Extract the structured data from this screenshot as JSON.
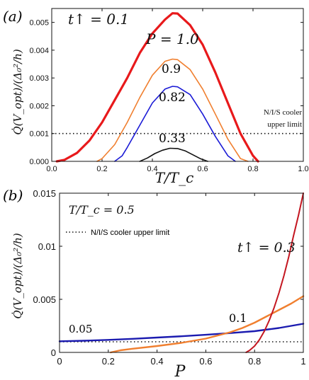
{
  "chart_data": [
    {
      "panel_label": "(a)",
      "type": "line",
      "xlabel": "T/T_c",
      "ylabel": "Q̇(V_opt)/(Δ₀²/h)",
      "xlim": [
        0.0,
        1.0
      ],
      "ylim": [
        0.0,
        0.0055
      ],
      "x_ticks": [
        "0.0",
        "0.2",
        "0.4",
        "0.6",
        "0.8",
        "1.0"
      ],
      "y_ticks": [
        "0.000",
        "0.001",
        "0.002",
        "0.003",
        "0.004",
        "0.005"
      ],
      "annotation_main": "t↑ = 0.1",
      "series": [
        {
          "name": "P = 1.0",
          "color": "#e8191b",
          "x": [
            0.02,
            0.05,
            0.1,
            0.15,
            0.2,
            0.25,
            0.3,
            0.35,
            0.4,
            0.45,
            0.48,
            0.5,
            0.55,
            0.6,
            0.65,
            0.7,
            0.75,
            0.8,
            0.82
          ],
          "values": [
            0.0,
            5e-05,
            0.0003,
            0.00075,
            0.0014,
            0.0022,
            0.003,
            0.0039,
            0.0046,
            0.0051,
            0.00533,
            0.00532,
            0.0049,
            0.0042,
            0.0032,
            0.0021,
            0.001,
            0.0002,
            0.0
          ]
        },
        {
          "name": "0.9",
          "color": "#f07f2f",
          "x": [
            0.18,
            0.2,
            0.25,
            0.3,
            0.35,
            0.4,
            0.45,
            0.48,
            0.5,
            0.55,
            0.6,
            0.65,
            0.7,
            0.75,
            0.78
          ],
          "values": [
            0.0,
            0.0001,
            0.0006,
            0.0014,
            0.0023,
            0.0031,
            0.0036,
            0.00368,
            0.00366,
            0.0033,
            0.0026,
            0.0017,
            0.0008,
            0.0001,
            0.0
          ],
          "label": "0.9"
        },
        {
          "name": "0.82",
          "color": "#1b1bd6",
          "x": [
            0.25,
            0.28,
            0.3,
            0.35,
            0.4,
            0.45,
            0.48,
            0.5,
            0.55,
            0.6,
            0.65,
            0.7,
            0.73
          ],
          "values": [
            0.0,
            0.0002,
            0.0005,
            0.0013,
            0.0021,
            0.0026,
            0.0027,
            0.00268,
            0.0024,
            0.0017,
            0.0009,
            0.0002,
            0.0
          ],
          "label": "0.82"
        },
        {
          "name": "0.33",
          "color": "#111111",
          "x": [
            0.35,
            0.38,
            0.41,
            0.44,
            0.47,
            0.5,
            0.53,
            0.56,
            0.59,
            0.62
          ],
          "values": [
            0.0,
            0.00012,
            0.00028,
            0.0004,
            0.00047,
            0.00046,
            0.00038,
            0.00024,
            0.0001,
            0.0
          ],
          "label": "0.33"
        }
      ],
      "reference_line": {
        "y": 0.001,
        "label_line1": "N/I/S cooler",
        "label_line2": "upper limit"
      }
    },
    {
      "panel_label": "(b)",
      "type": "line",
      "xlabel": "P",
      "ylabel": "Q̇(V_opt)/(Δ₀²/h)",
      "xlim": [
        0.0,
        1.0
      ],
      "ylim": [
        0.0,
        0.015
      ],
      "x_ticks": [
        "0",
        "0.2",
        "0.4",
        "0.6",
        "0.8",
        "1"
      ],
      "y_ticks": [
        "0",
        "0.005",
        "0.01",
        "0.015"
      ],
      "annotation_temp": "T/T_c = 0.5",
      "annotation_series": "t↑ = 0.3",
      "legend_entry": "N/I/S cooler upper limit",
      "reference_line": {
        "y": 0.001
      },
      "series": [
        {
          "name": "0.05",
          "color": "#1b1bb0",
          "x": [
            0.0,
            0.1,
            0.2,
            0.3,
            0.4,
            0.5,
            0.6,
            0.7,
            0.8,
            0.9,
            1.0
          ],
          "values": [
            0.00105,
            0.0011,
            0.00118,
            0.00128,
            0.0014,
            0.00152,
            0.00166,
            0.00182,
            0.002,
            0.0023,
            0.0027
          ]
        },
        {
          "name": "0.1",
          "color": "#f07f2f",
          "x": [
            0.21,
            0.25,
            0.3,
            0.4,
            0.5,
            0.6,
            0.65,
            0.7,
            0.75,
            0.8,
            0.85,
            0.9,
            0.95,
            1.0
          ],
          "values": [
            0.0,
            0.0002,
            0.00035,
            0.0006,
            0.0009,
            0.0013,
            0.0016,
            0.0019,
            0.0023,
            0.0028,
            0.0034,
            0.004,
            0.0046,
            0.0053
          ]
        },
        {
          "name": "0.3",
          "color": "#c41620",
          "x": [
            0.765,
            0.78,
            0.8,
            0.82,
            0.84,
            0.86,
            0.88,
            0.9,
            0.92,
            0.94,
            0.96,
            0.98,
            1.0
          ],
          "values": [
            0.0,
            0.0002,
            0.0006,
            0.0012,
            0.002,
            0.003,
            0.0042,
            0.0056,
            0.0072,
            0.009,
            0.011,
            0.0129,
            0.015
          ]
        }
      ]
    }
  ]
}
